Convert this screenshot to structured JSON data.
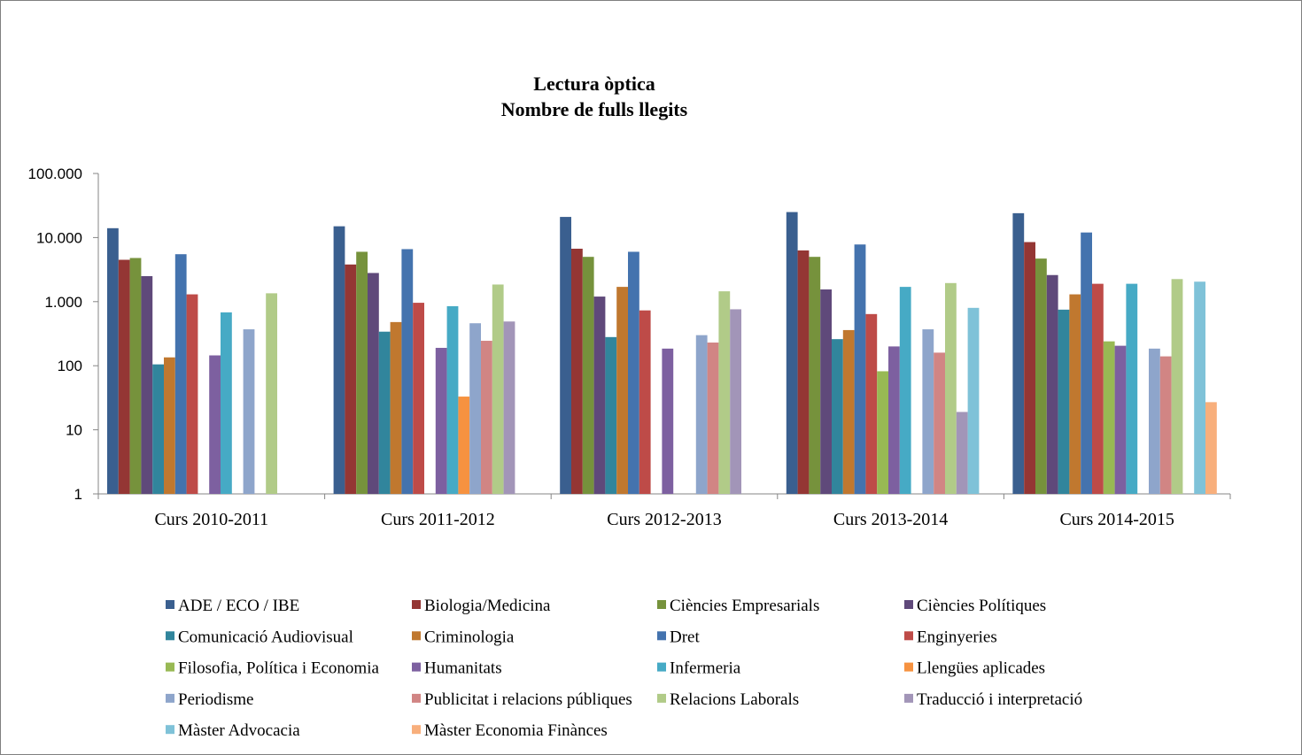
{
  "chart_data": {
    "type": "bar",
    "title": [
      "Lectura òptica",
      "Nombre de fulls llegits"
    ],
    "xlabel": "",
    "ylabel": "",
    "yscale": "log",
    "ylim": [
      1,
      100000
    ],
    "yticks": [
      1,
      10,
      100,
      1000,
      10000,
      100000
    ],
    "ytick_labels": [
      "1",
      "10",
      "100",
      "1.000",
      "10.000",
      "100.000"
    ],
    "grid": false,
    "legend_position": "bottom",
    "categories": [
      "Curs 2010-2011",
      "Curs 2011-2012",
      "Curs 2012-2013",
      "Curs 2013-2014",
      "Curs 2014-2015"
    ],
    "series": [
      {
        "name": "ADE / ECO / IBE",
        "color": "#3A5F8F",
        "values": [
          14000,
          15000,
          21000,
          25000,
          24000
        ]
      },
      {
        "name": "Biologia/Medicina",
        "color": "#943634",
        "values": [
          4500,
          3800,
          6700,
          6300,
          8500
        ]
      },
      {
        "name": "Ciències Empresarials",
        "color": "#76923C",
        "values": [
          4800,
          6000,
          5000,
          5000,
          4700
        ]
      },
      {
        "name": "Ciències Polítiques",
        "color": "#5F497A",
        "values": [
          2500,
          2800,
          1200,
          1550,
          2600
        ]
      },
      {
        "name": "Comunicació Audiovisual",
        "color": "#31859C",
        "values": [
          105,
          340,
          280,
          260,
          750
        ]
      },
      {
        "name": "Criminologia",
        "color": "#C0782F",
        "values": [
          135,
          480,
          1700,
          360,
          1300
        ]
      },
      {
        "name": "Dret",
        "color": "#4473AE",
        "values": [
          5500,
          6600,
          6000,
          7800,
          12000
        ]
      },
      {
        "name": "Enginyeries",
        "color": "#BE4B48",
        "values": [
          1300,
          960,
          730,
          640,
          1900
        ]
      },
      {
        "name": "Filosofia, Política i Economia",
        "color": "#98B954",
        "values": [
          null,
          null,
          null,
          82,
          240
        ]
      },
      {
        "name": "Humanitats",
        "color": "#7D60A0",
        "values": [
          145,
          190,
          185,
          200,
          205
        ]
      },
      {
        "name": "Infermeria",
        "color": "#46AAC5",
        "values": [
          680,
          850,
          null,
          1700,
          1900
        ]
      },
      {
        "name": "Llengües aplicades",
        "color": "#F69240",
        "values": [
          null,
          33,
          null,
          null,
          null
        ]
      },
      {
        "name": "Periodisme",
        "color": "#8EA5CB",
        "values": [
          370,
          460,
          300,
          370,
          185
        ]
      },
      {
        "name": "Publicitat i relacions públiques",
        "color": "#D18584",
        "values": [
          null,
          245,
          230,
          160,
          140
        ]
      },
      {
        "name": "Relacions Laborals",
        "color": "#B1CB88",
        "values": [
          1350,
          1850,
          1450,
          1950,
          2250
        ]
      },
      {
        "name": "Traducció i interpretació",
        "color": "#A295B8",
        "values": [
          null,
          490,
          760,
          19,
          null
        ]
      },
      {
        "name": "Màster Advocacia",
        "color": "#7FC2D8",
        "values": [
          null,
          null,
          null,
          800,
          2050
        ]
      },
      {
        "name": "Màster Economia Finànces",
        "color": "#F8AF7C",
        "values": [
          null,
          null,
          null,
          null,
          27
        ]
      }
    ]
  }
}
